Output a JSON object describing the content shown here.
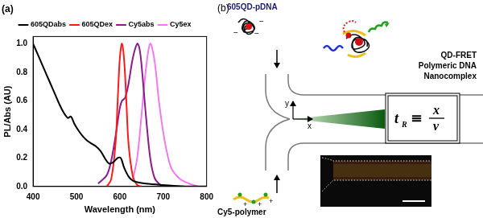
{
  "chart_data": {
    "type": "line",
    "title": "(a)",
    "x_label": "Wavelength (nm)",
    "y_label": "PL/Abs (AU)",
    "xlim": [
      400,
      800
    ],
    "xticks": [
      400,
      500,
      600,
      700,
      800
    ],
    "ylim": [
      0,
      1.05
    ],
    "yticks": [
      {
        "value": 0,
        "label": "0.0"
      },
      {
        "value": 0.2,
        "label": "0.2"
      },
      {
        "value": 0.4,
        "label": "0.4"
      },
      {
        "value": 0.6,
        "label": "0.6"
      },
      {
        "value": 0.8,
        "label": "0.8"
      },
      {
        "value": 1,
        "label": "1.0"
      }
    ],
    "grid": false,
    "legend": "top",
    "series": [
      {
        "name": "605QDabs",
        "color": "#000000",
        "x": [
          400,
          410,
          420,
          430,
          440,
          450,
          460,
          470,
          480,
          487,
          495,
          505,
          515,
          525,
          535,
          545,
          555,
          565,
          575,
          585,
          595,
          602,
          610,
          620,
          630,
          640,
          660,
          700,
          750,
          800
        ],
        "values": [
          1.0,
          0.93,
          0.86,
          0.79,
          0.72,
          0.65,
          0.58,
          0.52,
          0.48,
          0.49,
          0.44,
          0.39,
          0.35,
          0.32,
          0.3,
          0.28,
          0.25,
          0.2,
          0.16,
          0.17,
          0.2,
          0.2,
          0.13,
          0.07,
          0.04,
          0.03,
          0.02,
          0.01,
          0.0,
          0.0
        ]
      },
      {
        "name": "605QDex",
        "color": "#ff1a1a",
        "x": [
          570,
          580,
          590,
          595,
          600,
          605,
          610,
          615,
          620,
          630,
          640,
          650
        ],
        "values": [
          0.0,
          0.05,
          0.3,
          0.6,
          0.9,
          1.0,
          0.88,
          0.6,
          0.3,
          0.07,
          0.01,
          0.0
        ]
      },
      {
        "name": "Cy5abs",
        "color": "#8b1a8b",
        "x": [
          550,
          570,
          580,
          590,
          600,
          605,
          612,
          620,
          630,
          640,
          645,
          650,
          660,
          670,
          680,
          690,
          700
        ],
        "values": [
          0.02,
          0.08,
          0.18,
          0.35,
          0.55,
          0.6,
          0.62,
          0.72,
          0.9,
          1.0,
          0.97,
          0.85,
          0.5,
          0.2,
          0.06,
          0.02,
          0.0
        ]
      },
      {
        "name": "Cy5ex",
        "color": "#f07af0",
        "x": [
          630,
          640,
          650,
          660,
          670,
          680,
          690,
          700,
          710,
          720,
          740,
          760,
          780
        ],
        "values": [
          0.05,
          0.2,
          0.5,
          0.82,
          1.0,
          0.88,
          0.6,
          0.38,
          0.22,
          0.12,
          0.05,
          0.02,
          0.0
        ]
      }
    ]
  },
  "diagram": {
    "panel_label": "(b)",
    "inlets": [
      {
        "label": "605QD-pDNA",
        "charge": "−"
      },
      {
        "label": "Cy5-polymer",
        "charge": "+"
      }
    ],
    "product": {
      "lines": [
        "QD-FRET",
        "Polymeric DNA",
        "Nanocomplex"
      ]
    },
    "axes": {
      "x": "x",
      "y": "y"
    },
    "equation": {
      "symbol": "t",
      "subscript": "R",
      "relation": "≡",
      "numerator": "x",
      "denominator": "v"
    }
  }
}
